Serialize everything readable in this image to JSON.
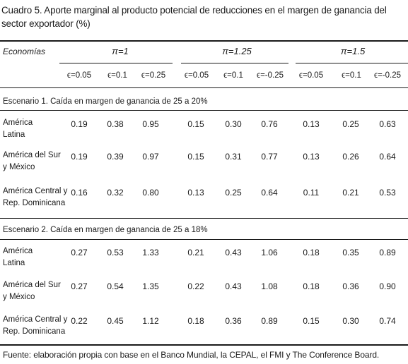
{
  "title": "Cuadro 5. Aporte marginal al producto potencial de reducciones en el margen de ganancia del sector exportador (%)",
  "header": {
    "economias": "Economías",
    "groups": [
      "π=1",
      "π=1.25",
      "π=1.5"
    ],
    "eps": [
      "ϵ=0.05",
      "ϵ=0.1",
      "ϵ=0.25",
      "ϵ=0.05",
      "ϵ=0.1",
      "ϵ=-0.25",
      "ϵ=0.05",
      "ϵ=0.1",
      "ϵ=-0.25"
    ]
  },
  "scenarios": [
    {
      "label": "Escenario 1. Caída en margen de ganancia de 25 a 20%",
      "rows": [
        {
          "name_l1": "América",
          "name_l2": "Latina",
          "values": [
            "0.19",
            "0.38",
            "0.95",
            "0.15",
            "0.30",
            "0.76",
            "0.13",
            "0.25",
            "0.63"
          ]
        },
        {
          "name_l1": "América del Sur",
          "name_l2": "y México",
          "values": [
            "0.19",
            "0.39",
            "0.97",
            "0.15",
            "0.31",
            "0.77",
            "0.13",
            "0.26",
            "0.64"
          ]
        },
        {
          "name_l1": "América Central y",
          "name_l2": "Rep. Dominicana",
          "values": [
            "0.16",
            "0.32",
            "0.80",
            "0.13",
            "0.25",
            "0.64",
            "0.11",
            "0.21",
            "0.53"
          ]
        }
      ]
    },
    {
      "label": "Escenario 2. Caída en margen de ganancia de 25 a 18%",
      "rows": [
        {
          "name_l1": "América",
          "name_l2": "Latina",
          "values": [
            "0.27",
            "0.53",
            "1.33",
            "0.21",
            "0.43",
            "1.06",
            "0.18",
            "0.35",
            "0.89"
          ]
        },
        {
          "name_l1": "América del Sur",
          "name_l2": "y México",
          "values": [
            "0.27",
            "0.54",
            "1.35",
            "0.22",
            "0.43",
            "1.08",
            "0.18",
            "0.36",
            "0.90"
          ]
        },
        {
          "name_l1": "América Central y",
          "name_l2": "Rep. Dominicana",
          "values": [
            "0.22",
            "0.45",
            "1.12",
            "0.18",
            "0.36",
            "0.89",
            "0.15",
            "0.30",
            "0.74"
          ]
        }
      ]
    }
  ],
  "footnote": "Fuente: elaboración propia con base en el Banco Mundial, la CEPAL, el FMI y The Conference Board."
}
